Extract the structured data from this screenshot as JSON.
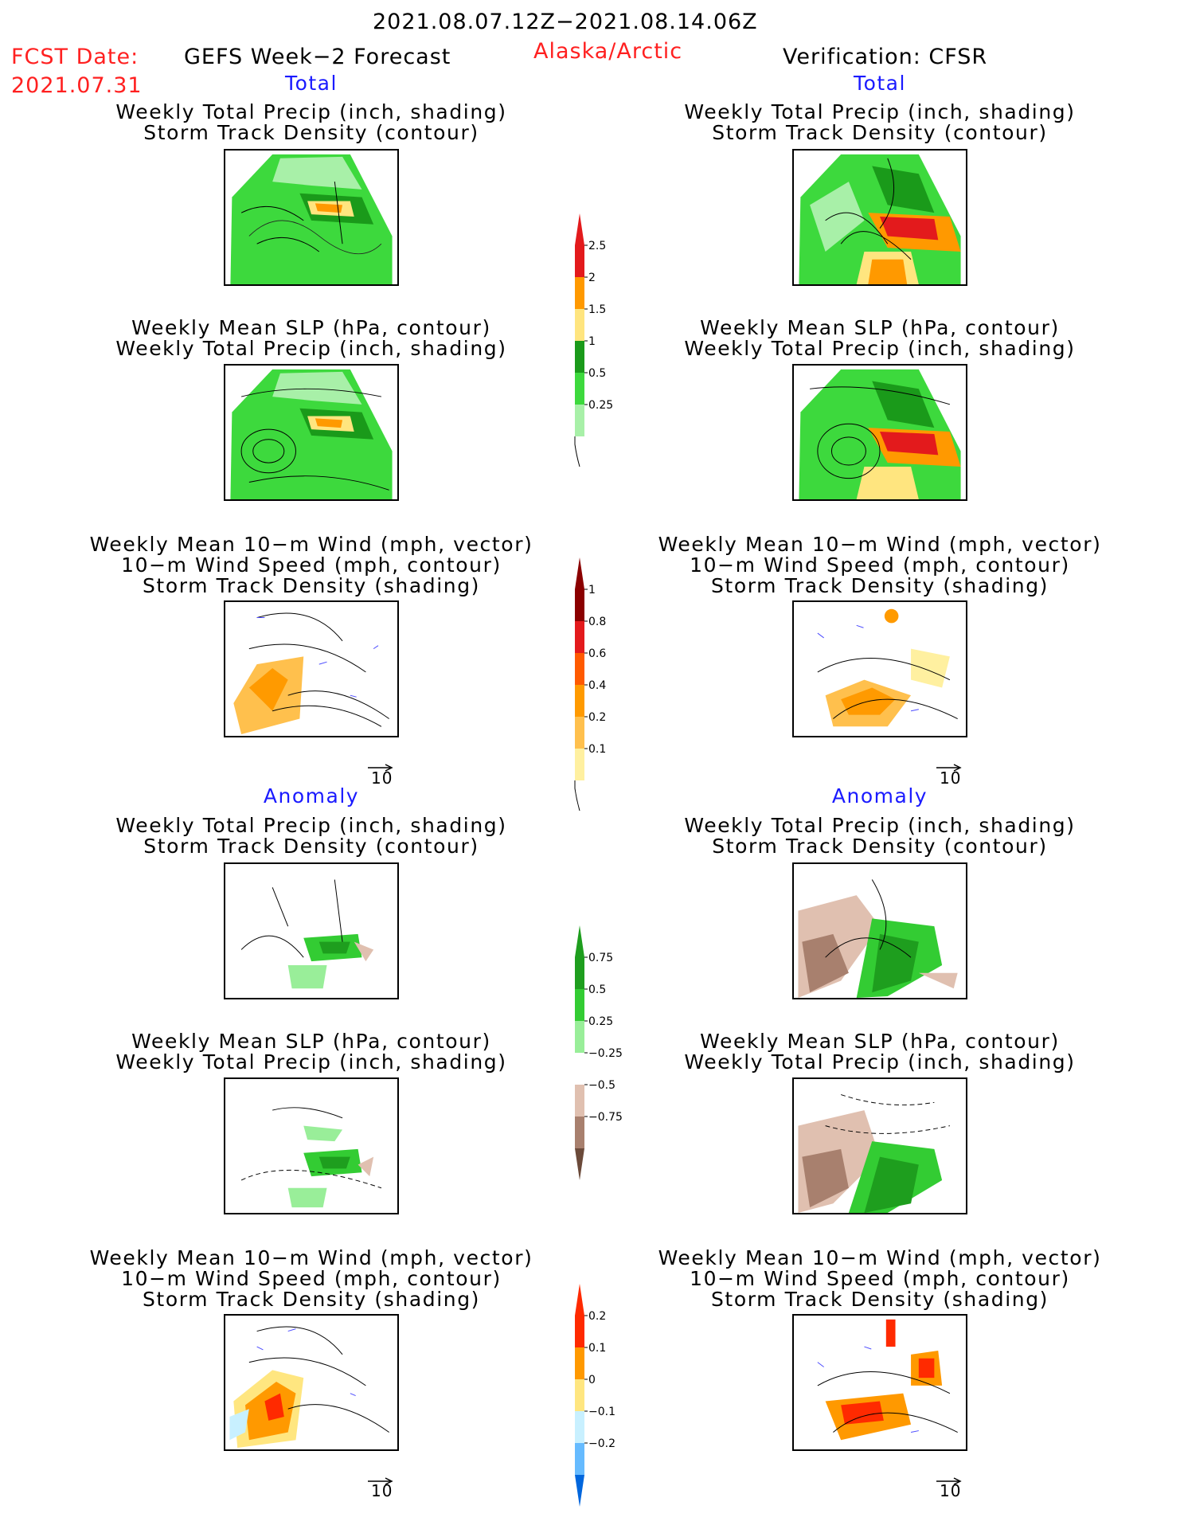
{
  "header": {
    "period": "2021.08.07.12Z−2021.08.14.06Z",
    "fcst_label": "FCST Date:",
    "fcst_date": "2021.07.31",
    "model": "GEFS Week−2 Forecast",
    "region": "Alaska/Arctic",
    "verification": "Verification: CFSR"
  },
  "sections": {
    "total": "Total",
    "anomaly": "Anomaly"
  },
  "titles": {
    "precip_storm": [
      "Weekly Total Precip (inch, shading)",
      "Storm Track Density (contour)"
    ],
    "slp_precip": [
      "Weekly Mean SLP (hPa, contour)",
      "Weekly Total Precip (inch, shading)"
    ],
    "wind_storm": [
      "Weekly Mean 10−m Wind (mph, vector)",
      "10−m Wind Speed (mph, contour)",
      "Storm Track Density (shading)"
    ]
  },
  "vector_ref": "10",
  "colorbars": {
    "precip_total": {
      "labels": [
        "2.5",
        "2",
        "1.5",
        "1",
        "0.5",
        "0.25"
      ],
      "colors": [
        "#e31a1c",
        "#ff9900",
        "#ffe57f",
        "#1a9a1a",
        "#3dd93d",
        "#a8f0a8"
      ]
    },
    "storm_total": {
      "labels": [
        "1",
        "0.8",
        "0.6",
        "0.4",
        "0.2",
        "0.1"
      ],
      "colors": [
        "#8b0000",
        "#e31a1c",
        "#ff5a00",
        "#ff9a00",
        "#ffc04d",
        "#fff0a0"
      ]
    },
    "precip_anom": {
      "labels": [
        "0.75",
        "0.5",
        "0.25",
        "−0.25",
        "−0.5",
        "−0.75"
      ],
      "colors": [
        "#1e9e1e",
        "#33cc33",
        "#99ee99",
        "#ffffff",
        "#e0c0b0",
        "#a8806e",
        "#6b4a3a"
      ]
    },
    "storm_anom": {
      "labels": [
        "0.2",
        "0.1",
        "0",
        "−0.1",
        "−0.2"
      ],
      "colors": [
        "#ff2a00",
        "#ff9900",
        "#ffe680",
        "#c8f0ff",
        "#66bbff",
        "#0066dd"
      ]
    }
  },
  "colors": {
    "header_red": "#ff2020",
    "section_blue": "#1a1aff"
  },
  "icons": {
    "vector_reference": "arrow-right-icon"
  }
}
